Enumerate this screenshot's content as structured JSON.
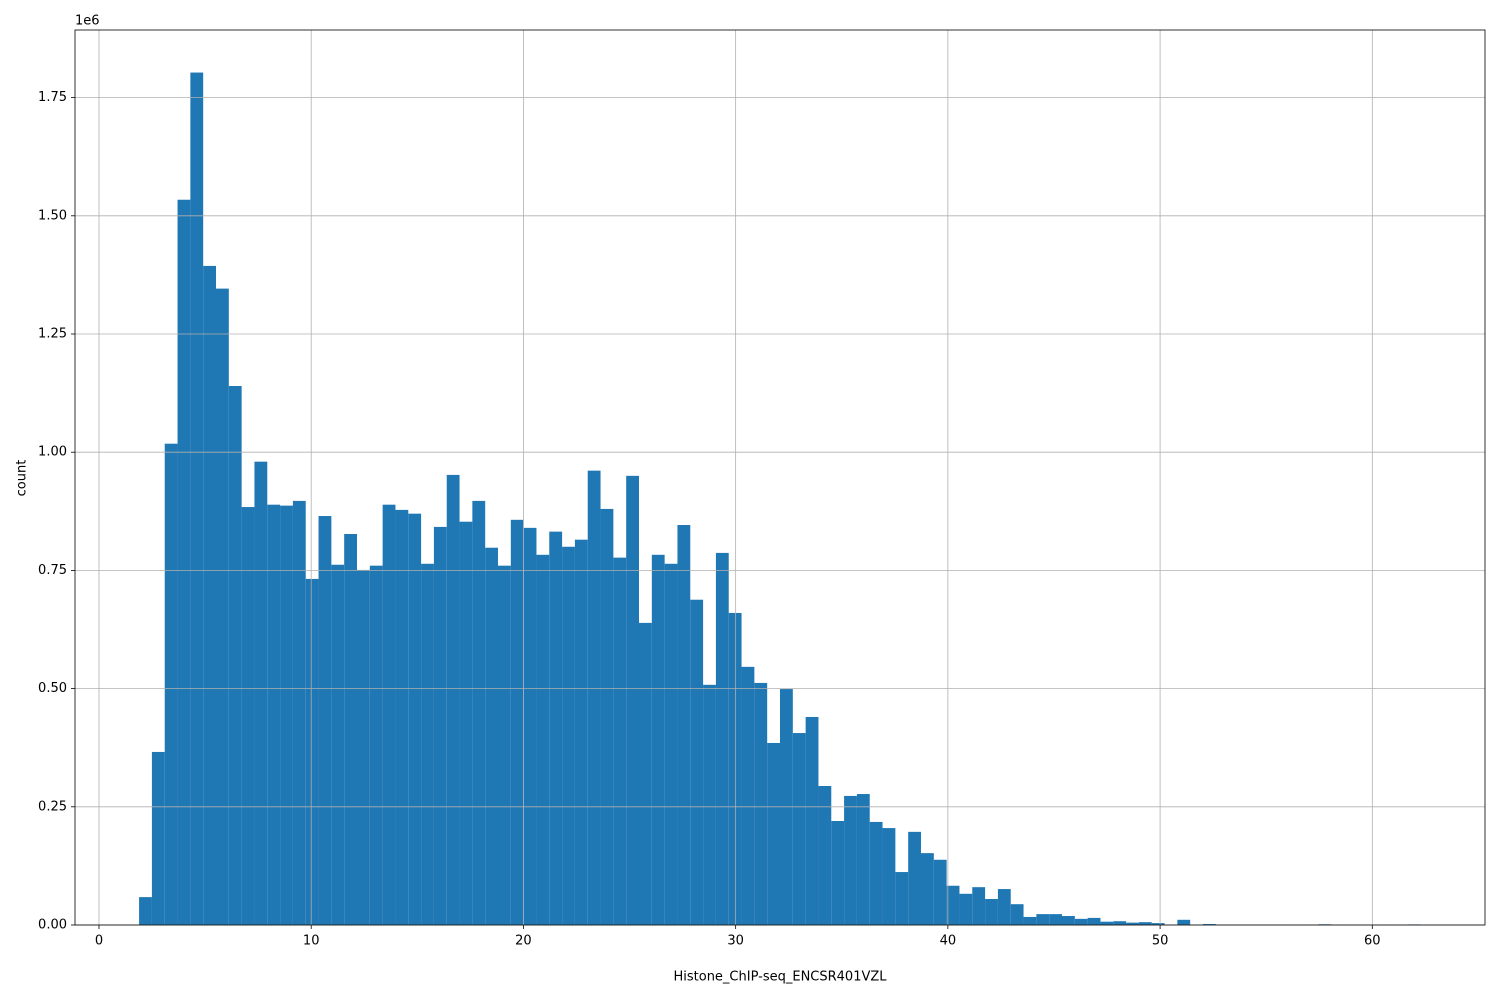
{
  "chart_data": {
    "type": "histogram",
    "x_label": "Histone_ChIP-seq_ENCSR401VZL",
    "y_label": "count",
    "y_offset_label": "1e6",
    "color": "#1f77b4",
    "grid": true,
    "bins": [
      1.89,
      2.494,
      3.098,
      3.702,
      4.306,
      4.91,
      5.514,
      6.118,
      6.722,
      7.326,
      7.93,
      8.534,
      9.138,
      9.742,
      10.346,
      10.95,
      11.554,
      12.158,
      12.762,
      13.366,
      13.97,
      14.574,
      15.178,
      15.782,
      16.386,
      16.99,
      17.594,
      18.198,
      18.802,
      19.406,
      20.01,
      20.614,
      21.218,
      21.822,
      22.426,
      23.03,
      23.634,
      24.238,
      24.842,
      25.446,
      26.05,
      26.654,
      27.258,
      27.862,
      28.466,
      29.07,
      29.674,
      30.278,
      30.882,
      31.486,
      32.09,
      32.694,
      33.298,
      33.902,
      34.506,
      35.11,
      35.714,
      36.318,
      36.922,
      37.526,
      38.13,
      38.734,
      39.338,
      39.942,
      40.546,
      41.15,
      41.754,
      42.358,
      42.962,
      43.566,
      44.17,
      44.774,
      45.378,
      45.982,
      46.586,
      47.19,
      47.794,
      48.398,
      49.002,
      49.606,
      50.21,
      50.814,
      51.418,
      52.022,
      52.626,
      53.23,
      53.834,
      54.438,
      55.042,
      55.646,
      56.25,
      56.854,
      57.458,
      58.062,
      58.666,
      59.27,
      59.874,
      60.478,
      61.082,
      61.686,
      62.29
    ],
    "values": [
      59000,
      366000,
      1018000,
      1534000,
      1803000,
      1394000,
      1346000,
      1140000,
      884000,
      980000,
      889000,
      887000,
      897000,
      732000,
      865000,
      762000,
      827000,
      751000,
      760000,
      889000,
      878000,
      870000,
      764000,
      842000,
      952000,
      853000,
      897000,
      798000,
      760000,
      857000,
      840000,
      783000,
      832000,
      800000,
      815000,
      961000,
      880000,
      777000,
      950000,
      639000,
      783000,
      764000,
      846000,
      688000,
      508000,
      787000,
      660000,
      546000,
      512000,
      385000,
      499000,
      406000,
      440000,
      294000,
      220000,
      273000,
      277000,
      218000,
      205000,
      112000,
      197000,
      152000,
      138000,
      83000,
      66000,
      80000,
      55000,
      76000,
      44000,
      17000,
      23000,
      23000,
      19000,
      13000,
      15000,
      7000,
      8000,
      5000,
      6000,
      4000,
      1000,
      11000,
      500,
      2000,
      300,
      400,
      200,
      200,
      300,
      200,
      100,
      200,
      1500,
      200,
      100,
      100,
      100,
      200,
      100,
      1200
    ],
    "xlim": [
      -1.13,
      65.31
    ],
    "xticks": [
      0,
      10,
      20,
      30,
      40,
      50,
      60
    ],
    "ylim": [
      0,
      1893000
    ],
    "yticks": [
      {
        "value": 0,
        "label": "0.00"
      },
      {
        "value": 250000,
        "label": "0.25"
      },
      {
        "value": 500000,
        "label": "0.50"
      },
      {
        "value": 750000,
        "label": "0.75"
      },
      {
        "value": 1000000,
        "label": "1.00"
      },
      {
        "value": 1250000,
        "label": "1.25"
      },
      {
        "value": 1500000,
        "label": "1.50"
      },
      {
        "value": 1750000,
        "label": "1.75"
      }
    ]
  }
}
